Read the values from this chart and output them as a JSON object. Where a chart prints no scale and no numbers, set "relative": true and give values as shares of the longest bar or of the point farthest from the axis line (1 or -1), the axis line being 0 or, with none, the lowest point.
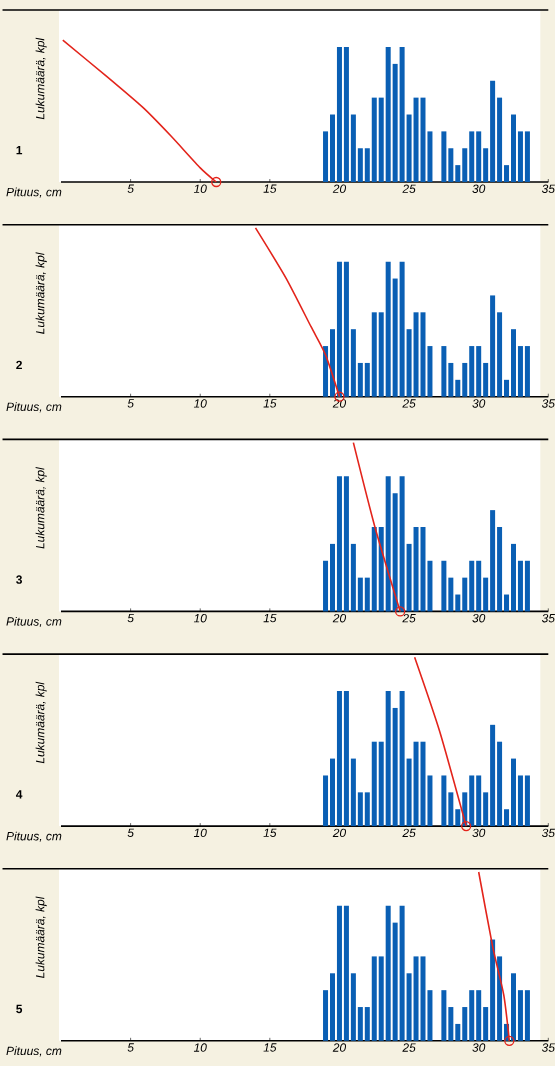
{
  "chart_data": [
    {
      "type": "bar",
      "title": "1",
      "xlabel": "Pituus, cm",
      "ylabel": "Lukumäärä, kpl",
      "relative": true,
      "xlim": [
        0,
        35
      ],
      "xticks": [
        5,
        10,
        15,
        20,
        25,
        30,
        35
      ],
      "series": [
        {
          "type": "bar",
          "color": "#0a5fb4",
          "x": [
            19,
            19.5,
            20,
            20.5,
            21,
            21.5,
            22,
            22.5,
            23,
            23.5,
            24,
            24.5,
            25,
            25.5,
            26,
            26.5,
            27,
            27.5,
            28,
            28.5,
            29,
            29.5,
            30,
            30.5,
            31,
            31.5,
            32,
            32.5,
            33,
            33.5
          ],
          "values": [
            0.357,
            0.476,
            0.952,
            0.952,
            0.476,
            0.238,
            0.238,
            0.595,
            0.595,
            0.952,
            0.833,
            0.952,
            0.476,
            0.595,
            0.595,
            0.357,
            0,
            0.357,
            0.238,
            0.119,
            0.238,
            0.357,
            0.357,
            0.238,
            0.714,
            0.595,
            0.119,
            0.476,
            0.357,
            0.357
          ]
        },
        {
          "type": "line",
          "color": "#e3241b",
          "marker": "none",
          "x": [
            0.13,
            3.3,
            5.9,
            7.9,
            10,
            11.15
          ],
          "values": [
            1,
            0.743,
            0.524,
            0.324,
            0.1,
            0
          ]
        },
        {
          "type": "scatter",
          "color": "#e3241b",
          "marker": "circle",
          "x": [
            11.15
          ],
          "values": [
            0
          ]
        }
      ]
    },
    {
      "type": "bar",
      "title": "2",
      "xlabel": "Pituus, cm",
      "ylabel": "Lukumäärä, kpl",
      "relative": true,
      "xlim": [
        0,
        35
      ],
      "xticks": [
        5,
        10,
        15,
        20,
        25,
        30,
        35
      ],
      "series": [
        {
          "type": "bar",
          "color": "#0a5fb4",
          "x": [
            19,
            19.5,
            20,
            20.5,
            21,
            21.5,
            22,
            22.5,
            23,
            23.5,
            24,
            24.5,
            25,
            25.5,
            26,
            26.5,
            27,
            27.5,
            28,
            28.5,
            29,
            29.5,
            30,
            30.5,
            31,
            31.5,
            32,
            32.5,
            33,
            33.5
          ],
          "values": [
            0.3,
            0.4,
            0.8,
            0.8,
            0.4,
            0.2,
            0.2,
            0.5,
            0.5,
            0.8,
            0.7,
            0.8,
            0.4,
            0.5,
            0.5,
            0.3,
            0,
            0.3,
            0.2,
            0.1,
            0.2,
            0.3,
            0.3,
            0.2,
            0.6,
            0.5,
            0.1,
            0.4,
            0.3,
            0.3
          ]
        },
        {
          "type": "line",
          "color": "#e3241b",
          "marker": "none",
          "x": [
            13.97,
            16.15,
            17.95,
            19,
            20
          ],
          "values": [
            1,
            0.704,
            0.416,
            0.248,
            0
          ]
        },
        {
          "type": "scatter",
          "color": "#e3241b",
          "marker": "circle",
          "x": [
            20
          ],
          "values": [
            0
          ]
        }
      ]
    },
    {
      "type": "bar",
      "title": "3",
      "xlabel": "Pituus, cm",
      "ylabel": "Lukumäärä, kpl",
      "relative": true,
      "xlim": [
        0,
        35
      ],
      "xticks": [
        5,
        10,
        15,
        20,
        25,
        30,
        35
      ],
      "series": [
        {
          "type": "bar",
          "color": "#0a5fb4",
          "x": [
            19,
            19.5,
            20,
            20.5,
            21,
            21.5,
            22,
            22.5,
            23,
            23.5,
            24,
            24.5,
            25,
            25.5,
            26,
            26.5,
            27,
            27.5,
            28,
            28.5,
            29,
            29.5,
            30,
            30.5,
            31,
            31.5,
            32,
            32.5,
            33,
            33.5
          ],
          "values": [
            0.3,
            0.4,
            0.8,
            0.8,
            0.4,
            0.2,
            0.2,
            0.5,
            0.5,
            0.8,
            0.7,
            0.8,
            0.4,
            0.5,
            0.5,
            0.3,
            0,
            0.3,
            0.2,
            0.1,
            0.2,
            0.3,
            0.3,
            0.2,
            0.6,
            0.5,
            0.1,
            0.4,
            0.3,
            0.3
          ]
        },
        {
          "type": "line",
          "color": "#e3241b",
          "marker": "none",
          "x": [
            21,
            22.56,
            24.36
          ],
          "values": [
            1,
            0.496,
            0
          ]
        },
        {
          "type": "scatter",
          "color": "#e3241b",
          "marker": "circle",
          "x": [
            24.36
          ],
          "values": [
            0
          ]
        }
      ]
    },
    {
      "type": "bar",
      "title": "4",
      "xlabel": "Pituus, cm",
      "ylabel": "Lukumäärä, kpl",
      "relative": true,
      "xlim": [
        0,
        35
      ],
      "xticks": [
        5,
        10,
        15,
        20,
        25,
        30,
        35
      ],
      "series": [
        {
          "type": "bar",
          "color": "#0a5fb4",
          "x": [
            19,
            19.5,
            20,
            20.5,
            21,
            21.5,
            22,
            22.5,
            23,
            23.5,
            24,
            24.5,
            25,
            25.5,
            26,
            26.5,
            27,
            27.5,
            28,
            28.5,
            29,
            29.5,
            30,
            30.5,
            31,
            31.5,
            32,
            32.5,
            33,
            33.5
          ],
          "values": [
            0.3,
            0.4,
            0.8,
            0.8,
            0.4,
            0.2,
            0.2,
            0.5,
            0.5,
            0.8,
            0.7,
            0.8,
            0.4,
            0.5,
            0.5,
            0.3,
            0,
            0.3,
            0.2,
            0.1,
            0.2,
            0.3,
            0.3,
            0.2,
            0.6,
            0.5,
            0.1,
            0.4,
            0.3,
            0.3
          ]
        },
        {
          "type": "line",
          "color": "#e3241b",
          "marker": "none",
          "x": [
            25.4,
            27.2,
            29.1
          ],
          "values": [
            1,
            0.56,
            0
          ]
        },
        {
          "type": "scatter",
          "color": "#e3241b",
          "marker": "circle",
          "x": [
            29.1
          ],
          "values": [
            0
          ]
        }
      ]
    },
    {
      "type": "bar",
      "title": "5",
      "xlabel": "Pituus, cm",
      "ylabel": "Lukumäärä, kpl",
      "relative": true,
      "xlim": [
        0,
        35
      ],
      "xticks": [
        5,
        10,
        15,
        20,
        25,
        30,
        35
      ],
      "series": [
        {
          "type": "bar",
          "color": "#0a5fb4",
          "x": [
            19,
            19.5,
            20,
            20.5,
            21,
            21.5,
            22,
            22.5,
            23,
            23.5,
            24,
            24.5,
            25,
            25.5,
            26,
            26.5,
            27,
            27.5,
            28,
            28.5,
            29,
            29.5,
            30,
            30.5,
            31,
            31.5,
            32,
            32.5,
            33,
            33.5
          ],
          "values": [
            0.3,
            0.4,
            0.8,
            0.8,
            0.4,
            0.2,
            0.2,
            0.5,
            0.5,
            0.8,
            0.7,
            0.8,
            0.4,
            0.5,
            0.5,
            0.3,
            0,
            0.3,
            0.2,
            0.1,
            0.2,
            0.3,
            0.3,
            0.2,
            0.6,
            0.5,
            0.1,
            0.4,
            0.3,
            0.3
          ]
        },
        {
          "type": "line",
          "color": "#e3241b",
          "marker": "none",
          "x": [
            30,
            31,
            31.8,
            32.2
          ],
          "values": [
            1,
            0.56,
            0.272,
            0
          ]
        },
        {
          "type": "scatter",
          "color": "#e3241b",
          "marker": "circle",
          "x": [
            32.2
          ],
          "values": [
            0
          ]
        }
      ]
    }
  ]
}
